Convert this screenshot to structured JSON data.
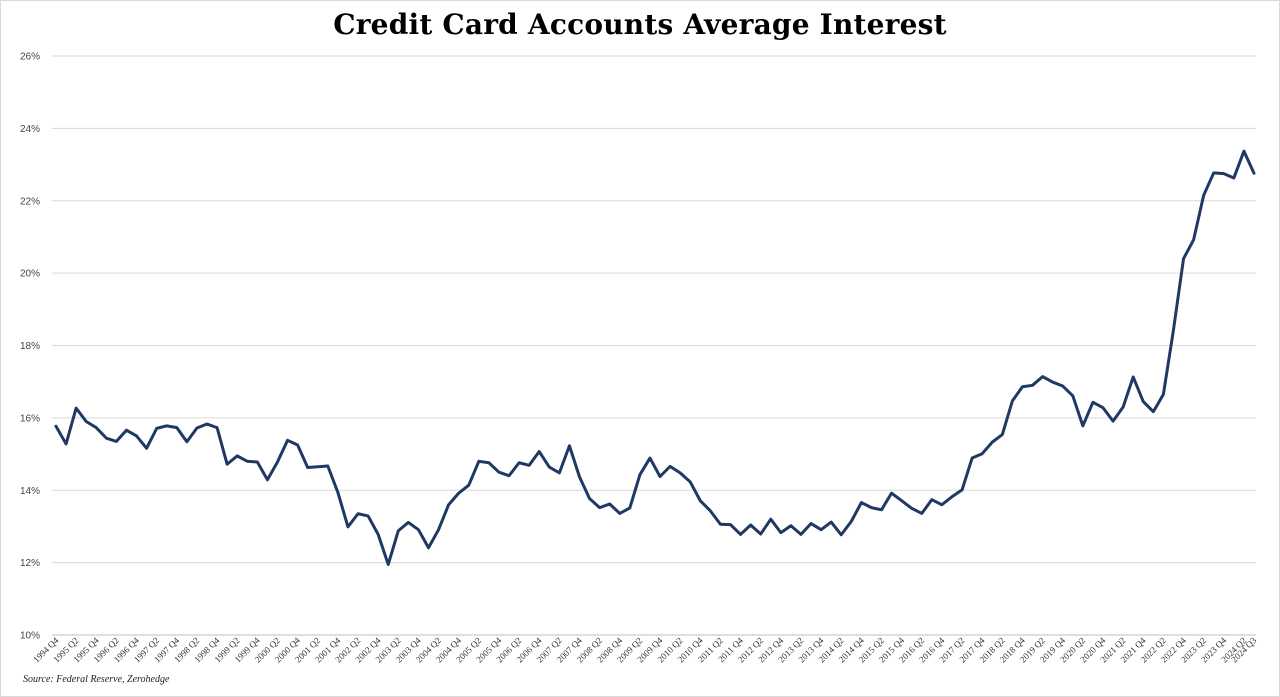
{
  "chart_data": {
    "type": "line",
    "title": "Credit Card Accounts Average Interest",
    "source": "Source: Federal Reserve, Zerohedge",
    "xlabel": "",
    "ylabel": "",
    "ylim": [
      10,
      26
    ],
    "yticks": [
      "10%",
      "12%",
      "14%",
      "16%",
      "18%",
      "20%",
      "22%",
      "24%",
      "26%"
    ],
    "grid": true,
    "line_color": "#1f3864",
    "xtick_labels": [
      "1994 Q4",
      "1995 Q2",
      "1995 Q4",
      "1996 Q2",
      "1996 Q4",
      "1997 Q2",
      "1997 Q4",
      "1998 Q2",
      "1998 Q4",
      "1999 Q2",
      "1999 Q4",
      "2000 Q2",
      "2000 Q4",
      "2001 Q2",
      "2001 Q4",
      "2002 Q2",
      "2002 Q4",
      "2003 Q2",
      "2003 Q4",
      "2004 Q2",
      "2004 Q4",
      "2005 Q2",
      "2005 Q4",
      "2006 Q2",
      "2006 Q4",
      "2007 Q2",
      "2007 Q4",
      "2008 Q2",
      "2008 Q4",
      "2009 Q2",
      "2009 Q4",
      "2010 Q2",
      "2010 Q4",
      "2011 Q2",
      "2011 Q4",
      "2012 Q2",
      "2012 Q4",
      "2013 Q2",
      "2013 Q4",
      "2014 Q2",
      "2014 Q4",
      "2015 Q2",
      "2015 Q4",
      "2016 Q2",
      "2016 Q4",
      "2017 Q2",
      "2017 Q4",
      "2018 Q2",
      "2018 Q4",
      "2019 Q2",
      "2019 Q4",
      "2020 Q2",
      "2020 Q4",
      "2021 Q2",
      "2021 Q4",
      "2022 Q2",
      "2022 Q4",
      "2023 Q2",
      "2023 Q4",
      "2024 Q2",
      "2024 Q3"
    ],
    "series": [
      {
        "values": [
          15.77,
          15.28,
          16.27,
          15.9,
          15.73,
          15.44,
          15.35,
          15.66,
          15.5,
          15.16,
          15.71,
          15.78,
          15.73,
          15.34,
          15.72,
          15.83,
          15.73,
          14.72,
          14.95,
          14.8,
          14.78,
          14.29,
          14.78,
          15.38,
          15.25,
          14.63,
          14.65,
          14.67,
          13.94,
          12.99,
          13.35,
          13.29,
          12.78,
          11.95,
          12.88,
          13.11,
          12.91,
          12.41,
          12.91,
          13.6,
          13.92,
          14.14,
          14.8,
          14.76,
          14.5,
          14.4,
          14.76,
          14.69,
          15.07,
          14.64,
          14.48,
          15.23,
          14.37,
          13.77,
          13.52,
          13.62,
          13.36,
          13.51,
          14.43,
          14.89,
          14.38,
          14.66,
          14.48,
          14.23,
          13.71,
          13.43,
          13.06,
          13.05,
          12.78,
          13.04,
          12.79,
          13.2,
          12.83,
          13.02,
          12.78,
          13.08,
          12.91,
          13.12,
          12.77,
          13.14,
          13.66,
          13.52,
          13.46,
          13.92,
          13.71,
          13.5,
          13.36,
          13.74,
          13.6,
          13.82,
          14.01,
          14.89,
          15.01,
          15.33,
          15.54,
          16.47,
          16.86,
          16.9,
          17.14,
          16.99,
          16.88,
          16.61,
          15.78,
          16.43,
          16.28,
          15.91,
          16.3,
          17.13,
          16.45,
          16.17,
          16.65,
          18.43,
          20.4,
          20.92,
          22.15,
          22.77,
          22.75,
          22.63,
          23.37,
          22.76
        ]
      }
    ]
  }
}
